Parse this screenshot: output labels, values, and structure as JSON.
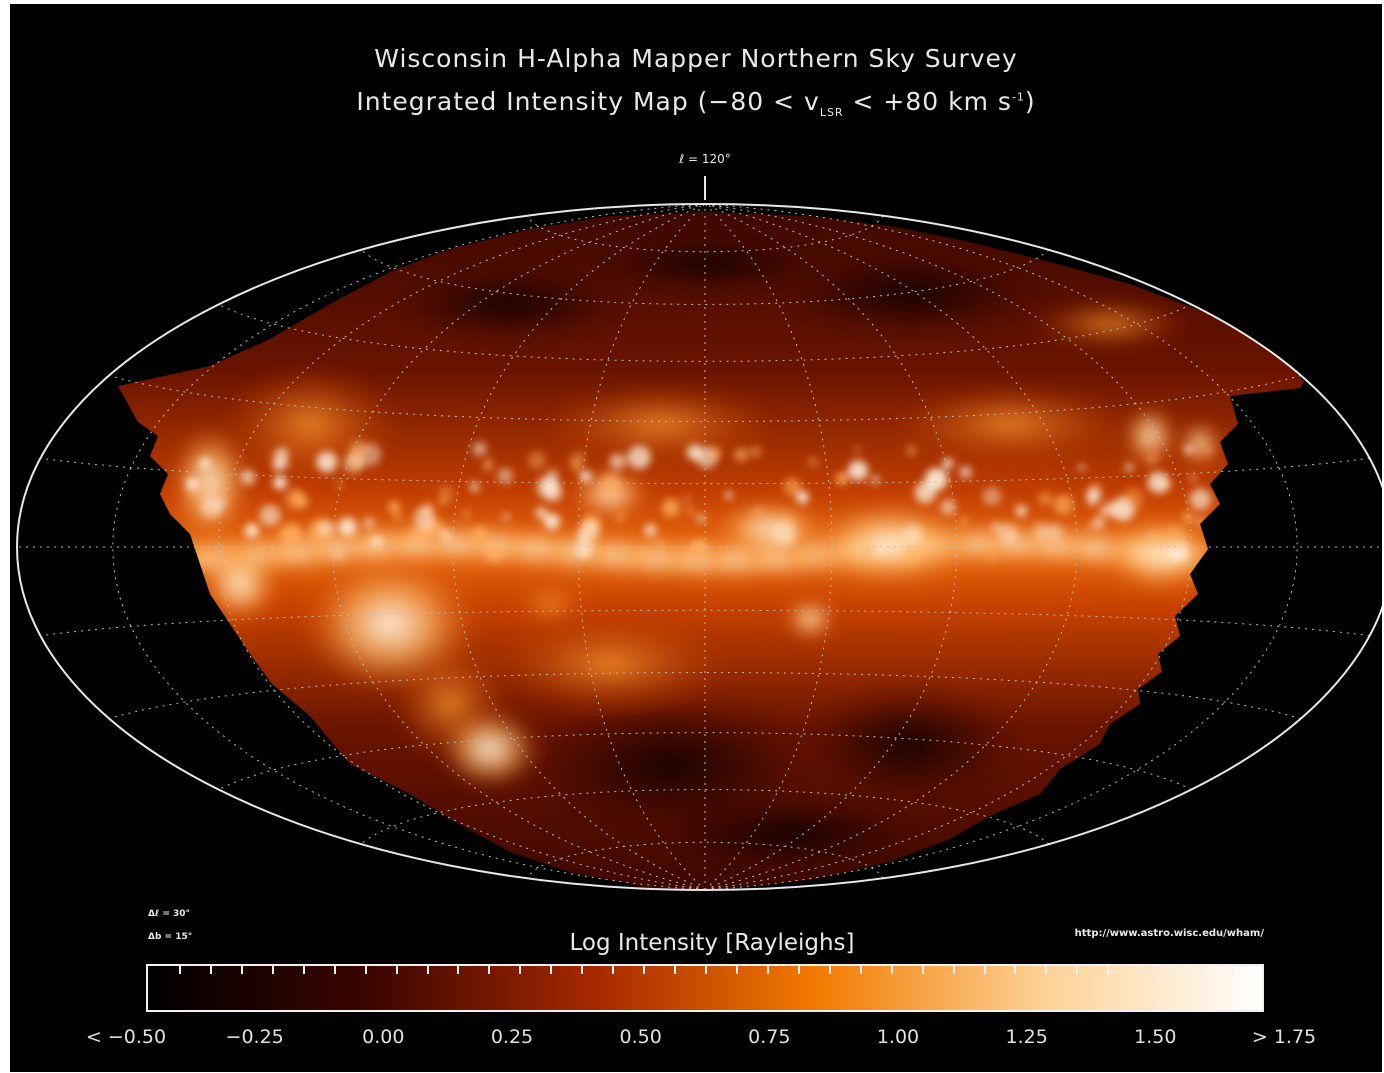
{
  "title_line1": "Wisconsin H-Alpha Mapper Northern Sky Survey",
  "title_line2_pre": "Integrated Intensity Map (−80 < v",
  "title_line2_sub": "LSR",
  "title_line2_mid": " < +80 km s",
  "title_line2_sup": "-1",
  "title_line2_post": ")",
  "center_longitude_label": "ℓ = 120°",
  "grid_spacing_l": "Δℓ = 30°",
  "grid_spacing_b": "Δb = 15°",
  "url": "http://www.astro.wisc.edu/wham/",
  "colorbar": {
    "title": "Log Intensity [Rayleighs]",
    "min": -0.5,
    "max": 1.75,
    "tick_labels": [
      "< −0.50",
      "−0.25",
      "0.00",
      "0.25",
      "0.50",
      "0.75",
      "1.00",
      "1.25",
      "1.50",
      "> 1.75"
    ],
    "colors": [
      "#000000",
      "#3c0500",
      "#a62800",
      "#f27a00",
      "#fdd093",
      "#ffffff"
    ]
  },
  "projection": "Hammer-Aitoff (Galactic coordinates)",
  "map_colors": {
    "background": "#000000",
    "grid": "#bbbbbb",
    "outline": "#e8e8e8",
    "faint": "#5a1000",
    "mid": "#c43c00",
    "bright": "#ff9a30",
    "saturated": "#fff4e4"
  }
}
